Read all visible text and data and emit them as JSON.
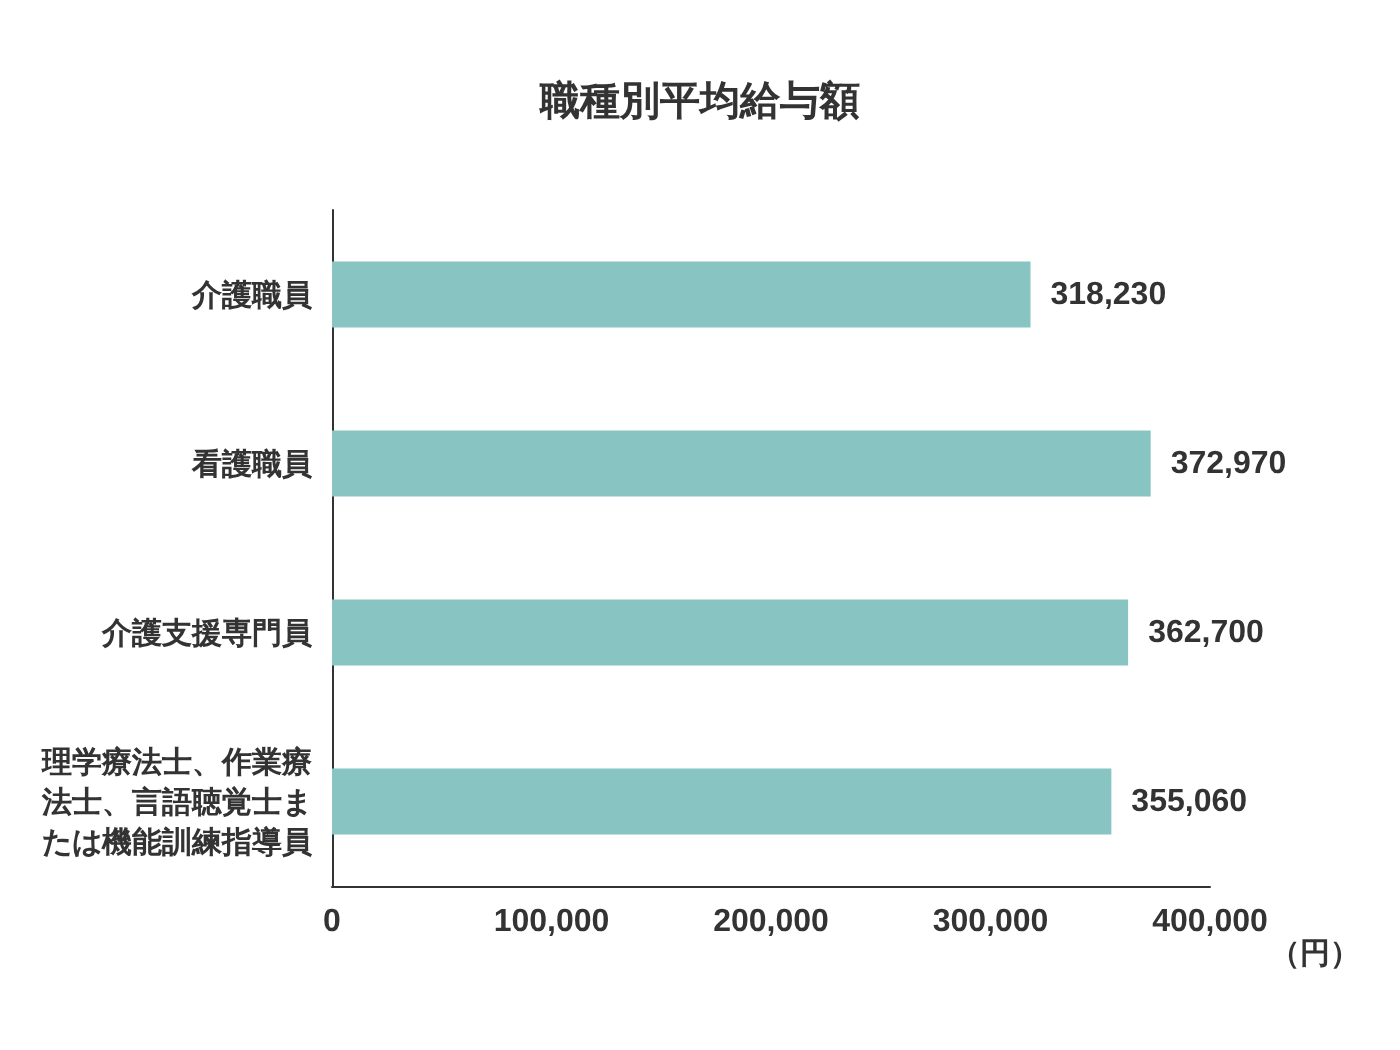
{
  "chart_data": {
    "type": "bar",
    "orientation": "horizontal",
    "title": "職種別平均給与額",
    "categories": [
      "介護職員",
      "看護職員",
      "介護支援専門員",
      "理学療法士、作業療法士、言語聴覚士または機能訓練指導員"
    ],
    "values": [
      318230,
      372970,
      362700,
      355060
    ],
    "value_labels": [
      "318,230",
      "372,970",
      "362,700",
      "355,060"
    ],
    "color": "#88c4c2",
    "xlim": [
      0,
      400000
    ],
    "xticks": [
      0,
      {
        "value": 100000,
        "label": "100,000"
      },
      {
        "value": 200000,
        "label": "200,000"
      },
      {
        "value": 300000,
        "label": "300,000"
      },
      {
        "value": 400000,
        "label": "400,000"
      }
    ],
    "xlabel": "（円）",
    "grid": false
  }
}
